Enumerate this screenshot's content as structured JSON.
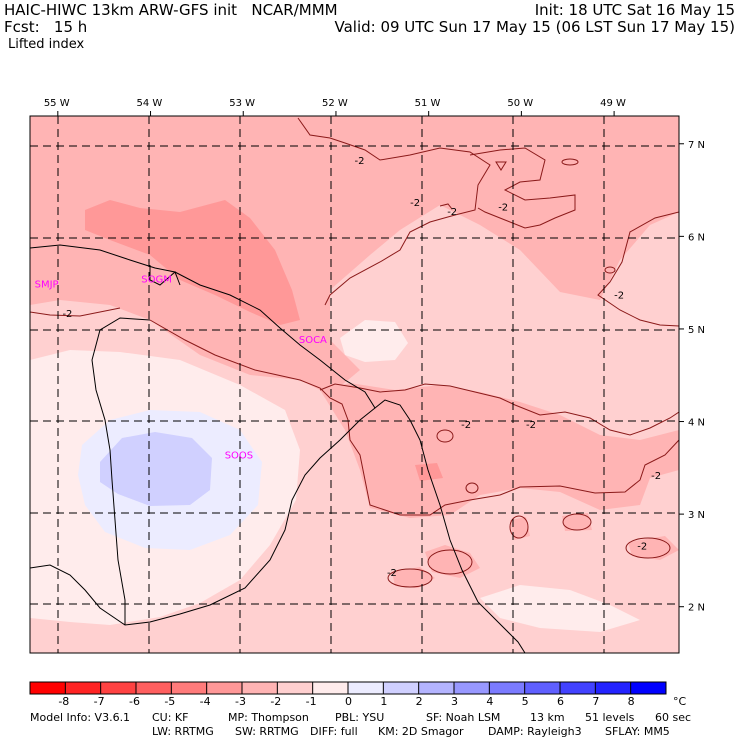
{
  "header": {
    "line1_left": "HAIC-HIWC 13km ARW-GFS init   NCAR/MMM",
    "line1_right": "Init: 18 UTC Sat 16 May 15",
    "line2_left": "Fcst:   15 h",
    "line2_right": "Valid: 09 UTC Sun 17 May 15 (06 LST Sun 17 May 15)",
    "variable": "Lifted index"
  },
  "axes": {
    "lon_labels": [
      {
        "label": "55 W",
        "lon": -55
      },
      {
        "label": "54 W",
        "lon": -54
      },
      {
        "label": "53 W",
        "lon": -53
      },
      {
        "label": "52 W",
        "lon": -52
      },
      {
        "label": "51 W",
        "lon": -51
      },
      {
        "label": "50 W",
        "lon": -50
      },
      {
        "label": "49 W",
        "lon": -49
      }
    ],
    "lat_labels": [
      {
        "label": "7 N",
        "lat": 7
      },
      {
        "label": "6 N",
        "lat": 6
      },
      {
        "label": "5 N",
        "lat": 5
      },
      {
        "label": "4 N",
        "lat": 4
      },
      {
        "label": "3 N",
        "lat": 3
      },
      {
        "label": "2 N",
        "lat": 2
      }
    ],
    "lon_range": [
      -55.3,
      -48.3
    ],
    "lat_range": [
      1.5,
      7.3
    ]
  },
  "stations": [
    {
      "id": "SMJP",
      "lon": -55.25,
      "lat": 5.45
    },
    {
      "id": "SOGM",
      "lon": -54.1,
      "lat": 5.5
    },
    {
      "id": "SOCA",
      "lon": -52.4,
      "lat": 4.85
    },
    {
      "id": "SOOS",
      "lon": -53.2,
      "lat": 3.6
    }
  ],
  "contour_labels": [
    {
      "text": "-2",
      "lon": -51.8,
      "lat": 6.78
    },
    {
      "text": "-2",
      "lon": -51.2,
      "lat": 6.33
    },
    {
      "text": "-2",
      "lon": -50.8,
      "lat": 6.23
    },
    {
      "text": "-2",
      "lon": -50.25,
      "lat": 6.28
    },
    {
      "text": "-2",
      "lon": -49.0,
      "lat": 5.33
    },
    {
      "text": "-2",
      "lon": -54.95,
      "lat": 5.13
    },
    {
      "text": "-2",
      "lon": -50.65,
      "lat": 3.93
    },
    {
      "text": "-2",
      "lon": -49.95,
      "lat": 3.93
    },
    {
      "text": "-2",
      "lon": -48.6,
      "lat": 3.38
    },
    {
      "text": "-2",
      "lon": -48.75,
      "lat": 2.62
    },
    {
      "text": "-2",
      "lon": -51.45,
      "lat": 2.33
    }
  ],
  "colorbar": {
    "ticks": [
      "-8",
      "-7",
      "-6",
      "-5",
      "-4",
      "-3",
      "-2",
      "-1",
      "0",
      "1",
      "2",
      "3",
      "4",
      "5",
      "6",
      "7",
      "8"
    ],
    "unit": "°C",
    "colors": [
      "#ff0000",
      "#ff2323",
      "#ff4242",
      "#ff5f5f",
      "#ff7b7b",
      "#ff9898",
      "#ffb4b4",
      "#ffd0d0",
      "#ffecec",
      "#ececff",
      "#d0d0ff",
      "#b4b4ff",
      "#9898ff",
      "#7b7bff",
      "#5f5fff",
      "#4242ff",
      "#2323ff",
      "#0000ff"
    ]
  },
  "footer": {
    "model_info": "Model Info: V3.6.1",
    "cu": "CU: KF",
    "mp": "MP: Thompson",
    "pbl": "PBL: YSU",
    "sf": "SF: Noah LSM",
    "res": "13 km",
    "levels": "51 levels",
    "dt": "60 sec",
    "lw": "LW: RRTMG",
    "sw": "SW: RRTMG",
    "diff": "DIFF: full",
    "km": "KM: 2D Smagor",
    "damp": "DAMP: Rayleigh3",
    "sflay": "SFLAY: MM5"
  }
}
